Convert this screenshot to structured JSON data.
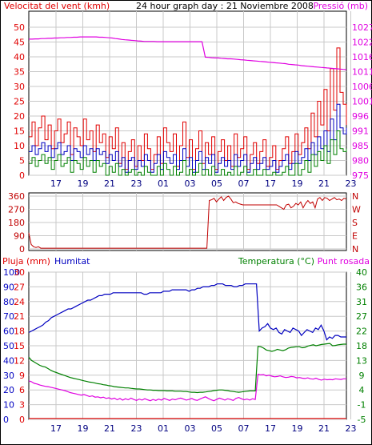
{
  "header": {
    "wind_title": "Velocitat del vent (kmh)",
    "graph_title": "24 hour graph day : 21 Noviembre 2008",
    "pressure_title": "Pressió (mb)",
    "rain_title": "Pluja (mm)",
    "humidity_title": "Humitat",
    "temp_title": "Temperatura (°C)",
    "dew_title": "Punt rosada"
  },
  "colors": {
    "wind": "#e00000",
    "gust": "#e00000",
    "wind_avg": "#0000c0",
    "wind_low": "#008000",
    "pressure": "#e000e0",
    "direction": "#c00000",
    "humidity": "#0000c0",
    "temperature": "#008000",
    "dew": "#e000e0",
    "rain": "#e00000",
    "grid": "#c8c8c8",
    "frame": "#000000"
  },
  "x_ticks": [
    "17",
    "19",
    "21",
    "23",
    "01",
    "03",
    "05",
    "07",
    "17",
    "19",
    "21",
    "23"
  ],
  "chart_data": [
    {
      "type": "line",
      "name": "wind-pressure",
      "title": "24 hour graph day : 21 Noviembre 2008",
      "ylabel_left": "Velocitat del vent (kmh)",
      "ylabel_right": "Pressió (mb)",
      "y_left_ticks": [
        "50",
        "45",
        "40",
        "35",
        "30",
        "25",
        "20",
        "15",
        "10",
        "5",
        "0"
      ],
      "y_right_ticks": [
        "1027",
        "1022",
        "1016",
        "1011",
        "1006",
        "1001",
        "996",
        "991",
        "985",
        "980",
        "975"
      ],
      "ylim_left": [
        0,
        50
      ],
      "ylim_right": [
        975,
        1027
      ],
      "grid": true,
      "series": [
        {
          "name": "Velocitat del vent (kmh)",
          "values": [
            13,
            18,
            10,
            16,
            20,
            12,
            17,
            9,
            15,
            19,
            11,
            14,
            18,
            7,
            16,
            13,
            10,
            19,
            12,
            15,
            8,
            17,
            11,
            14,
            6,
            13,
            9,
            16,
            4,
            11,
            2,
            8,
            12,
            3,
            10,
            5,
            14,
            9,
            2,
            7,
            13,
            4,
            16,
            11,
            8,
            14,
            3,
            10,
            18,
            6,
            12,
            2,
            9,
            15,
            4,
            11,
            7,
            13,
            2,
            8,
            12,
            5,
            10,
            3,
            14,
            6,
            9,
            13,
            2,
            7,
            11,
            4,
            8,
            12,
            3,
            6,
            10,
            2,
            5,
            9,
            13,
            4,
            8,
            14,
            7,
            11,
            16,
            9,
            21,
            13,
            25,
            17,
            29,
            15,
            36,
            22,
            43,
            28,
            24,
            17
          ]
        },
        {
          "name": "Velocitat del vent (kmh) avg",
          "values": [
            8,
            10,
            7,
            9,
            11,
            8,
            10,
            6,
            9,
            11,
            7,
            8,
            10,
            5,
            9,
            8,
            6,
            10,
            7,
            9,
            5,
            9,
            7,
            8,
            4,
            7,
            5,
            8,
            3,
            6,
            1,
            5,
            6,
            2,
            5,
            3,
            7,
            5,
            1,
            4,
            7,
            2,
            8,
            6,
            4,
            7,
            2,
            5,
            9,
            3,
            6,
            1,
            5,
            8,
            2,
            6,
            4,
            7,
            1,
            4,
            6,
            3,
            5,
            2,
            7,
            3,
            5,
            7,
            1,
            4,
            6,
            2,
            4,
            6,
            2,
            3,
            5,
            1,
            3,
            5,
            7,
            2,
            4,
            8,
            4,
            6,
            9,
            5,
            11,
            7,
            13,
            9,
            15,
            8,
            19,
            12,
            24,
            16,
            14,
            16
          ]
        },
        {
          "name": "Velocitat del vent (kmh) low",
          "values": [
            4,
            6,
            3,
            5,
            7,
            4,
            6,
            2,
            5,
            7,
            3,
            4,
            6,
            1,
            5,
            4,
            2,
            6,
            3,
            5,
            1,
            5,
            3,
            4,
            0,
            3,
            1,
            4,
            0,
            2,
            0,
            1,
            2,
            0,
            1,
            0,
            3,
            1,
            0,
            0,
            3,
            0,
            4,
            2,
            0,
            3,
            0,
            1,
            5,
            0,
            2,
            0,
            1,
            4,
            0,
            2,
            0,
            3,
            0,
            0,
            2,
            0,
            1,
            0,
            3,
            0,
            1,
            3,
            0,
            0,
            2,
            0,
            0,
            2,
            0,
            0,
            1,
            0,
            0,
            1,
            3,
            0,
            0,
            4,
            0,
            2,
            5,
            1,
            7,
            3,
            8,
            5,
            10,
            4,
            12,
            7,
            15,
            9,
            8,
            9
          ]
        },
        {
          "name": "Pressió (mb)",
          "values": [
            1022.8,
            1022.8,
            1022.9,
            1022.9,
            1023.0,
            1023.0,
            1023.1,
            1023.1,
            1023.2,
            1023.2,
            1023.3,
            1023.3,
            1023.4,
            1023.4,
            1023.5,
            1023.5,
            1023.6,
            1023.6,
            1023.6,
            1023.6,
            1023.6,
            1023.6,
            1023.5,
            1023.5,
            1023.4,
            1023.3,
            1023.2,
            1023.0,
            1022.9,
            1022.7,
            1022.6,
            1022.5,
            1022.4,
            1022.3,
            1022.2,
            1022.1,
            1022.0,
            1022.0,
            1022.0,
            1022.0,
            1021.9,
            1021.9,
            1021.9,
            1021.9,
            1021.9,
            1021.9,
            1021.9,
            1021.9,
            1021.9,
            1021.9,
            1021.9,
            1021.9,
            1021.9,
            1021.9,
            1021.9,
            1016.5,
            1016.4,
            1016.3,
            1016.2,
            1016.2,
            1016.1,
            1016.0,
            1015.9,
            1015.9,
            1015.8,
            1015.7,
            1015.6,
            1015.5,
            1015.4,
            1015.3,
            1015.2,
            1015.1,
            1015.0,
            1014.9,
            1014.8,
            1014.7,
            1014.6,
            1014.5,
            1014.4,
            1014.3,
            1014.2,
            1014.0,
            1013.9,
            1013.8,
            1013.7,
            1013.5,
            1013.4,
            1013.3,
            1013.2,
            1013.1,
            1013.0,
            1012.9,
            1012.8,
            1012.7,
            1012.6,
            1012.5,
            1012.4,
            1012.3,
            1012.2,
            1012.1
          ]
        }
      ]
    },
    {
      "type": "line",
      "name": "wind-direction",
      "y_left_ticks": [
        "360",
        "270",
        "180",
        "90",
        "0"
      ],
      "y_right_ticks": [
        "N",
        "W",
        "S",
        "E",
        "N"
      ],
      "ylim": [
        0,
        360
      ],
      "grid": true,
      "series": [
        {
          "name": "direction",
          "values": [
            110,
            30,
            15,
            10,
            15,
            5,
            5,
            5,
            5,
            5,
            5,
            5,
            5,
            5,
            5,
            5,
            5,
            5,
            5,
            5,
            5,
            5,
            5,
            5,
            5,
            5,
            5,
            5,
            5,
            5,
            5,
            5,
            5,
            5,
            5,
            5,
            5,
            5,
            5,
            5,
            5,
            5,
            5,
            5,
            5,
            5,
            5,
            5,
            5,
            5,
            5,
            5,
            5,
            5,
            5,
            5,
            5,
            5,
            5,
            5,
            5,
            5,
            5,
            5,
            5,
            5,
            5,
            5,
            5,
            5,
            5,
            5,
            5,
            5,
            5,
            330,
            335,
            345,
            320,
            340,
            355,
            330,
            350,
            360,
            340,
            315,
            320,
            310,
            305,
            300,
            300,
            300,
            300,
            300,
            300,
            300,
            300,
            300,
            300,
            300,
            300,
            300,
            300,
            300,
            290,
            280,
            270,
            300,
            305,
            280,
            290,
            310,
            300,
            320,
            280,
            310,
            330,
            310,
            320,
            280,
            340,
            350,
            330,
            350,
            345,
            330,
            340,
            350,
            335,
            340,
            330,
            345,
            340
          ]
        }
      ]
    },
    {
      "type": "line",
      "name": "rain-humidity-temperature",
      "ylabel_left": "Pluja (mm)",
      "ylabel_left2": "Humitat",
      "ylabel_right": "Temperatura (°C)",
      "ylabel_right2": "Punt rosada",
      "y_left_ticks": [
        {
          "rain": "30",
          "hum": "100"
        },
        {
          "rain": "27",
          "hum": "90"
        },
        {
          "rain": "24",
          "hum": "80"
        },
        {
          "rain": "21",
          "hum": "70"
        },
        {
          "rain": "18",
          "hum": "60"
        },
        {
          "rain": "15",
          "hum": "50"
        },
        {
          "rain": "12",
          "hum": "40"
        },
        {
          "rain": "9",
          "hum": "30"
        },
        {
          "rain": "6",
          "hum": "20"
        },
        {
          "rain": "3",
          "hum": "10"
        },
        {
          "rain": "0",
          "hum": "0"
        }
      ],
      "y_right_ticks": [
        "40",
        "36",
        "31",
        "27",
        "22",
        "18",
        "13",
        "9",
        "4",
        "-1",
        "-5"
      ],
      "ylim_humidity": [
        0,
        100
      ],
      "ylim_temperature": [
        -5,
        40
      ],
      "ylim_rain": [
        0,
        30
      ],
      "grid": true,
      "series": [
        {
          "name": "Humitat",
          "values": [
            59,
            60,
            61,
            62,
            63,
            64,
            66,
            67,
            69,
            70,
            71,
            72,
            73,
            74,
            75,
            75,
            76,
            77,
            78,
            79,
            80,
            81,
            81,
            82,
            83,
            84,
            84,
            85,
            85,
            85,
            86,
            86,
            86,
            86,
            86,
            86,
            86,
            86,
            86,
            86,
            86,
            85,
            85,
            86,
            86,
            86,
            86,
            86,
            87,
            87,
            87,
            88,
            88,
            88,
            88,
            88,
            88,
            87,
            88,
            88,
            89,
            89,
            90,
            90,
            90,
            91,
            91,
            92,
            92,
            92,
            91,
            91,
            91,
            90,
            90,
            91,
            91,
            92,
            92,
            92,
            92,
            92,
            60,
            62,
            63,
            65,
            62,
            61,
            62,
            59,
            58,
            61,
            60,
            59,
            62,
            61,
            60,
            57,
            59,
            61,
            60,
            59,
            62,
            61,
            64,
            60,
            54,
            56,
            55,
            57,
            57,
            56,
            56,
            56
          ]
        },
        {
          "name": "Temperatura (°C)",
          "values": [
            14.0,
            13.0,
            12.5,
            12.0,
            11.5,
            11.2,
            11.0,
            10.5,
            10.0,
            9.6,
            9.3,
            9.0,
            8.7,
            8.4,
            8.1,
            7.8,
            7.6,
            7.4,
            7.2,
            7.0,
            6.8,
            6.6,
            6.4,
            6.3,
            6.1,
            5.9,
            5.8,
            5.6,
            5.5,
            5.3,
            5.2,
            5.0,
            4.9,
            4.8,
            4.7,
            4.6,
            4.6,
            4.5,
            4.4,
            4.3,
            4.3,
            4.2,
            4.1,
            4.0,
            4.0,
            3.9,
            3.9,
            3.8,
            3.8,
            3.8,
            3.7,
            3.7,
            3.7,
            3.6,
            3.6,
            3.6,
            3.5,
            3.5,
            3.4,
            3.3,
            3.3,
            3.2,
            3.3,
            3.3,
            3.4,
            3.5,
            3.6,
            3.8,
            3.9,
            4.0,
            4.0,
            3.9,
            3.8,
            3.6,
            3.5,
            3.4,
            3.3,
            3.4,
            3.5,
            3.6,
            3.7,
            3.7,
            3.7,
            17.3,
            17.2,
            16.8,
            16.2,
            16.0,
            15.8,
            16.0,
            16.4,
            16.2,
            16.0,
            16.3,
            16.8,
            17.0,
            17.1,
            17.2,
            17.2,
            16.9,
            17.0,
            17.4,
            17.6,
            17.8,
            17.5,
            17.7,
            17.9,
            18.0,
            18.1,
            18.2,
            17.5,
            17.6,
            17.8,
            17.9,
            18.0,
            18.0
          ]
        },
        {
          "name": "Punt rosada",
          "values": [
            6.8,
            6.5,
            6.0,
            5.8,
            5.5,
            5.3,
            5.1,
            5.0,
            4.8,
            4.6,
            4.4,
            4.2,
            4.0,
            3.8,
            3.5,
            3.2,
            3.0,
            2.8,
            2.6,
            2.4,
            2.6,
            2.3,
            2.0,
            2.2,
            1.8,
            1.9,
            1.6,
            1.8,
            1.4,
            1.6,
            1.2,
            1.5,
            1.0,
            1.4,
            0.9,
            1.3,
            1.0,
            1.5,
            1.1,
            0.8,
            1.2,
            0.9,
            1.3,
            1.0,
            0.7,
            1.1,
            0.8,
            1.2,
            0.9,
            1.4,
            1.1,
            0.8,
            1.2,
            1.0,
            1.3,
            1.5,
            1.2,
            0.9,
            1.1,
            1.4,
            1.0,
            0.8,
            1.2,
            1.6,
            1.9,
            1.4,
            1.0,
            0.7,
            1.1,
            1.5,
            1.2,
            0.9,
            1.3,
            1.1,
            0.8,
            1.4,
            1.7,
            1.3,
            1.0,
            1.2,
            0.9,
            1.3,
            1.1,
            8.8,
            8.6,
            8.7,
            8.3,
            8.5,
            8.2,
            8.0,
            8.1,
            8.3,
            8.0,
            7.8,
            7.9,
            8.1,
            8.0,
            7.7,
            7.8,
            7.6,
            7.5,
            7.7,
            7.4,
            7.3,
            7.6,
            7.2,
            7.0,
            7.3,
            7.1,
            7.2,
            7.1,
            7.4,
            7.3,
            7.2,
            7.4,
            7.4
          ]
        },
        {
          "name": "Pluja (mm)",
          "values": [
            0.2,
            0.2,
            0.2,
            0.2,
            0.2,
            0.2,
            0.2,
            0.2,
            0.2,
            0.2,
            0.2,
            0.2,
            0.2,
            0.2,
            0.2,
            0.2,
            0.2,
            0.2,
            0.2,
            0.2,
            0.2,
            0.2,
            0.2,
            0.2
          ]
        }
      ]
    }
  ]
}
